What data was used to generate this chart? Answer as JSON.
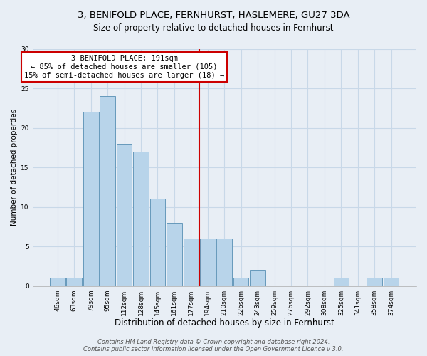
{
  "title": "3, BENIFOLD PLACE, FERNHURST, HASLEMERE, GU27 3DA",
  "subtitle": "Size of property relative to detached houses in Fernhurst",
  "xlabel": "Distribution of detached houses by size in Fernhurst",
  "ylabel": "Number of detached properties",
  "bar_labels": [
    "46sqm",
    "63sqm",
    "79sqm",
    "95sqm",
    "112sqm",
    "128sqm",
    "145sqm",
    "161sqm",
    "177sqm",
    "194sqm",
    "210sqm",
    "226sqm",
    "243sqm",
    "259sqm",
    "276sqm",
    "292sqm",
    "308sqm",
    "325sqm",
    "341sqm",
    "358sqm",
    "374sqm"
  ],
  "bar_values": [
    1,
    1,
    22,
    24,
    18,
    17,
    11,
    8,
    6,
    6,
    6,
    1,
    2,
    0,
    0,
    0,
    0,
    1,
    0,
    1,
    1
  ],
  "bar_color": "#b8d4ea",
  "bar_edge_color": "#6699bb",
  "reference_line_color": "#cc0000",
  "annotation_title": "3 BENIFOLD PLACE: 191sqm",
  "annotation_line1": "← 85% of detached houses are smaller (105)",
  "annotation_line2": "15% of semi-detached houses are larger (18) →",
  "annotation_box_color": "#ffffff",
  "annotation_box_edge": "#cc0000",
  "ylim": [
    0,
    30
  ],
  "yticks": [
    0,
    5,
    10,
    15,
    20,
    25,
    30
  ],
  "footer_line1": "Contains HM Land Registry data © Crown copyright and database right 2024.",
  "footer_line2": "Contains public sector information licensed under the Open Government Licence v 3.0.",
  "background_color": "#e8eef5",
  "grid_color": "#c8d8e8",
  "title_fontsize": 9.5,
  "subtitle_fontsize": 8.5,
  "xlabel_fontsize": 8.5,
  "ylabel_fontsize": 7.5,
  "tick_fontsize": 6.5,
  "footer_fontsize": 6,
  "annotation_fontsize": 7.5
}
